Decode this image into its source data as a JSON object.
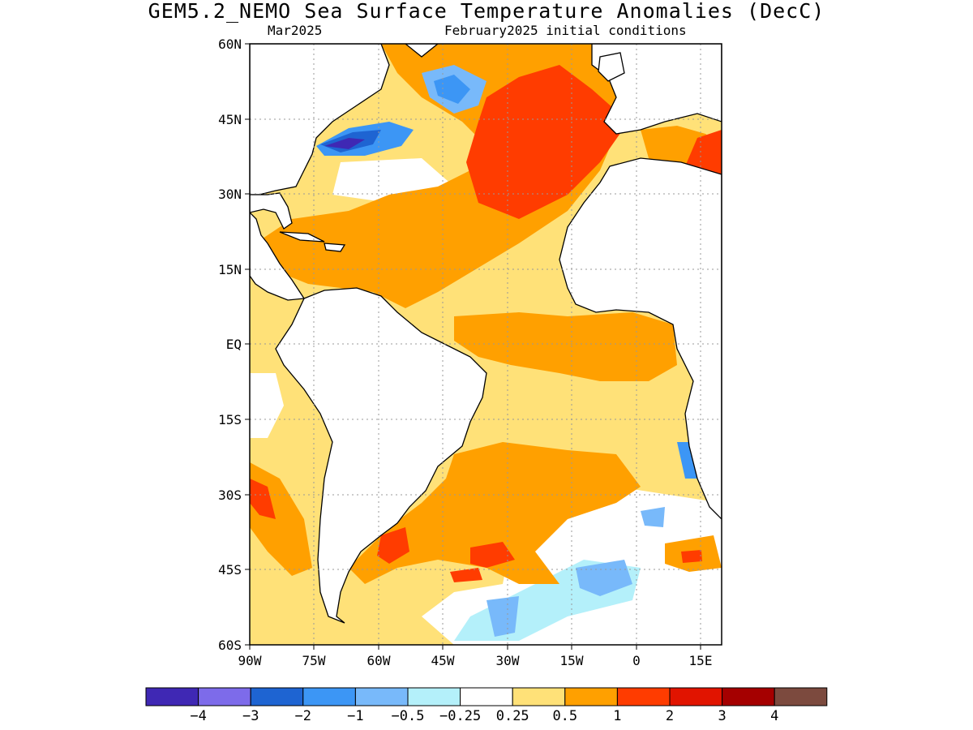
{
  "title": "GEM5.2_NEMO Sea Surface Temperature Anomalies (DecC)",
  "subtitle_left": "Mar2025",
  "subtitle_right": "February2025 initial conditions",
  "map": {
    "lon_range": [
      -90,
      20
    ],
    "lat_range": [
      -60,
      60
    ],
    "grid": true,
    "lat_ticks": [
      "60N",
      "45N",
      "30N",
      "15N",
      "EQ",
      "15S",
      "30S",
      "45S",
      "60S"
    ],
    "lon_ticks": [
      "90W",
      "75W",
      "60W",
      "45W",
      "30W",
      "15W",
      "0",
      "15E"
    ]
  },
  "colorbar": {
    "labels": [
      "−4",
      "−3",
      "−2",
      "−1",
      "−0.5",
      "−0.25",
      "0.25",
      "0.5",
      "1",
      "2",
      "3",
      "4"
    ],
    "colors": [
      "#3f28b4",
      "#7d6bea",
      "#1e64d2",
      "#3c96f5",
      "#78b9fa",
      "#b4f0fa",
      "#ffffff",
      "#ffe178",
      "#ffa000",
      "#ff3c00",
      "#e11400",
      "#a50000",
      "#7c4a3e"
    ]
  }
}
